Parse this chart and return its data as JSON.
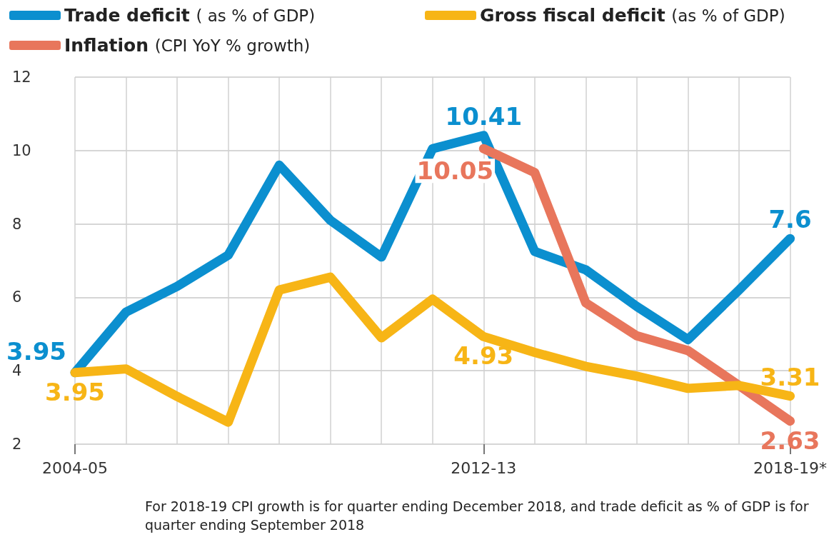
{
  "chart_data": {
    "type": "line",
    "categories": [
      "2004-05",
      null,
      null,
      null,
      null,
      null,
      null,
      null,
      "2012-13",
      null,
      null,
      null,
      null,
      null,
      "2018-19*"
    ],
    "series": [
      {
        "name": "Trade deficit ( as % of GDP)",
        "color": "#0b8fcf",
        "values": [
          3.95,
          5.6,
          6.3,
          7.15,
          9.6,
          8.1,
          7.1,
          10.05,
          10.41,
          7.25,
          6.75,
          5.75,
          4.85,
          6.2,
          7.6
        ],
        "value_labels": [
          "3.95",
          null,
          null,
          null,
          null,
          null,
          null,
          null,
          "10.41",
          null,
          null,
          null,
          null,
          null,
          "7.6"
        ]
      },
      {
        "name": "Inflation (CPI YoY % growth)",
        "color": "#e8765c",
        "values": [
          null,
          null,
          null,
          null,
          null,
          null,
          null,
          null,
          10.05,
          9.4,
          5.85,
          4.95,
          4.55,
          3.6,
          2.63
        ],
        "value_labels": [
          null,
          null,
          null,
          null,
          null,
          null,
          null,
          null,
          "10.05",
          null,
          null,
          null,
          null,
          null,
          "2.63"
        ]
      },
      {
        "name": "Gross fiscal deficit (as % of GDP)",
        "color": "#f7b516",
        "values": [
          3.95,
          4.05,
          3.3,
          2.6,
          6.2,
          6.55,
          4.9,
          5.95,
          4.93,
          4.5,
          4.12,
          3.85,
          3.52,
          3.6,
          3.31
        ],
        "value_labels": [
          "3.95",
          null,
          null,
          null,
          null,
          null,
          null,
          null,
          "4.93",
          null,
          null,
          null,
          null,
          null,
          "3.31"
        ]
      }
    ],
    "ylim": [
      2,
      12
    ],
    "yticks": [
      2,
      4,
      6,
      8,
      10,
      12
    ],
    "grid": true,
    "legend": "top left",
    "marker": "none",
    "line_style": "solid",
    "annotations": [
      "For 2018-19 CPI growth is for quarter ending December 2018, and trade deficit as % of GDP is for quarter ending September 2018"
    ]
  }
}
